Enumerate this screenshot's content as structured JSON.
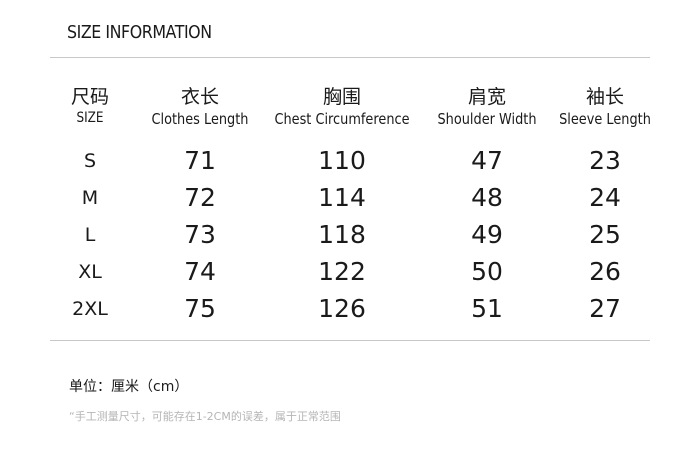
{
  "title": "SIZE INFORMATION",
  "columns": [
    {
      "zh": "尺码",
      "en": "SIZE"
    },
    {
      "zh": "衣长",
      "en": "Clothes Length"
    },
    {
      "zh": "胸围",
      "en": "Chest Circumference"
    },
    {
      "zh": "肩宽",
      "en": "Shoulder Width"
    },
    {
      "zh": "袖长",
      "en": "Sleeve Length"
    }
  ],
  "rows": [
    [
      "S",
      "71",
      "110",
      "47",
      "23"
    ],
    [
      "M",
      "72",
      "114",
      "48",
      "24"
    ],
    [
      "L",
      "73",
      "118",
      "49",
      "25"
    ],
    [
      "XL",
      "74",
      "122",
      "50",
      "26"
    ],
    [
      "2XL",
      "75",
      "126",
      "51",
      "27"
    ]
  ],
  "unit": "单位：厘米（cm）",
  "note": "“手工测量尺寸，可能存在1-2CM的误差，属于正常范围"
}
